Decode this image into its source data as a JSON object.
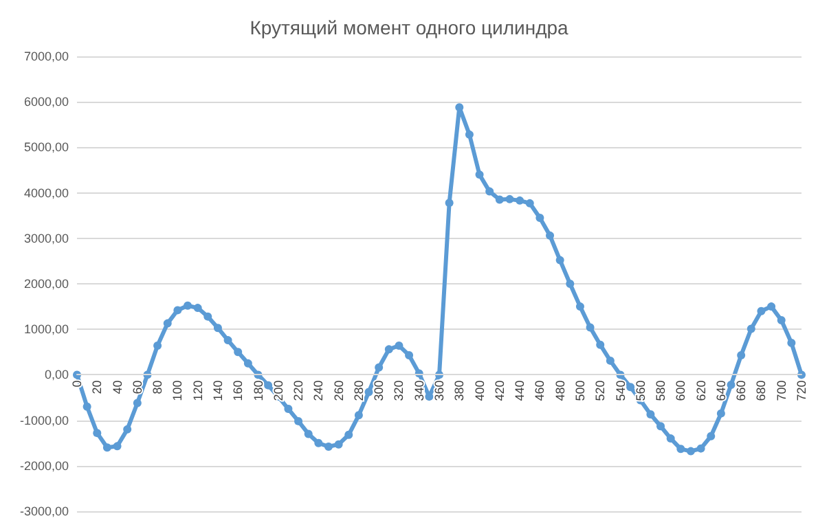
{
  "chart_data": {
    "type": "line",
    "title": "Крутящий момент одного цилиндра",
    "x": [
      0,
      10,
      20,
      30,
      40,
      50,
      60,
      70,
      80,
      90,
      100,
      110,
      120,
      130,
      140,
      150,
      160,
      170,
      180,
      190,
      200,
      210,
      220,
      230,
      240,
      250,
      260,
      270,
      280,
      290,
      300,
      310,
      320,
      330,
      340,
      350,
      360,
      370,
      380,
      390,
      400,
      410,
      420,
      430,
      440,
      450,
      460,
      470,
      480,
      490,
      500,
      510,
      520,
      530,
      540,
      550,
      560,
      570,
      580,
      590,
      600,
      610,
      620,
      630,
      640,
      650,
      660,
      670,
      680,
      690,
      700,
      710,
      720
    ],
    "series": [
      {
        "color": "#5b9bd5",
        "values": [
          0,
          -700,
          -1280,
          -1600,
          -1570,
          -1200,
          -620,
          0,
          640,
          1130,
          1420,
          1520,
          1470,
          1280,
          1030,
          760,
          500,
          250,
          0,
          -230,
          -480,
          -750,
          -1020,
          -1300,
          -1500,
          -1580,
          -1530,
          -1320,
          -890,
          -380,
          160,
          560,
          640,
          430,
          30,
          -480,
          0,
          3780,
          5880,
          5280,
          4400,
          4030,
          3850,
          3860,
          3830,
          3770,
          3450,
          3060,
          2520,
          2000,
          1500,
          1040,
          660,
          310,
          0,
          -270,
          -560,
          -870,
          -1130,
          -1400,
          -1630,
          -1680,
          -1620,
          -1350,
          -850,
          -220,
          430,
          1010,
          1400,
          1500,
          1200,
          700,
          0
        ]
      }
    ],
    "xlim": [
      0,
      720
    ],
    "xticks": [
      0,
      20,
      40,
      60,
      80,
      100,
      120,
      140,
      160,
      180,
      200,
      220,
      240,
      260,
      280,
      300,
      320,
      340,
      360,
      380,
      400,
      420,
      440,
      460,
      480,
      500,
      520,
      540,
      560,
      580,
      600,
      620,
      640,
      660,
      680,
      700,
      720
    ],
    "ylim": [
      -3000,
      7000
    ],
    "yticks": [
      {
        "value": -3000,
        "label": "-3000,00"
      },
      {
        "value": -2000,
        "label": "-2000,00"
      },
      {
        "value": -1000,
        "label": "-1000,00"
      },
      {
        "value": 0,
        "label": "0,00"
      },
      {
        "value": 1000,
        "label": "1000,00"
      },
      {
        "value": 2000,
        "label": "2000,00"
      },
      {
        "value": 3000,
        "label": "3000,00"
      },
      {
        "value": 4000,
        "label": "4000,00"
      },
      {
        "value": 5000,
        "label": "5000,00"
      },
      {
        "value": 6000,
        "label": "6000,00"
      },
      {
        "value": 7000,
        "label": "7000,00"
      }
    ],
    "grid": "y",
    "marker": "circle",
    "line_style": "solid"
  }
}
